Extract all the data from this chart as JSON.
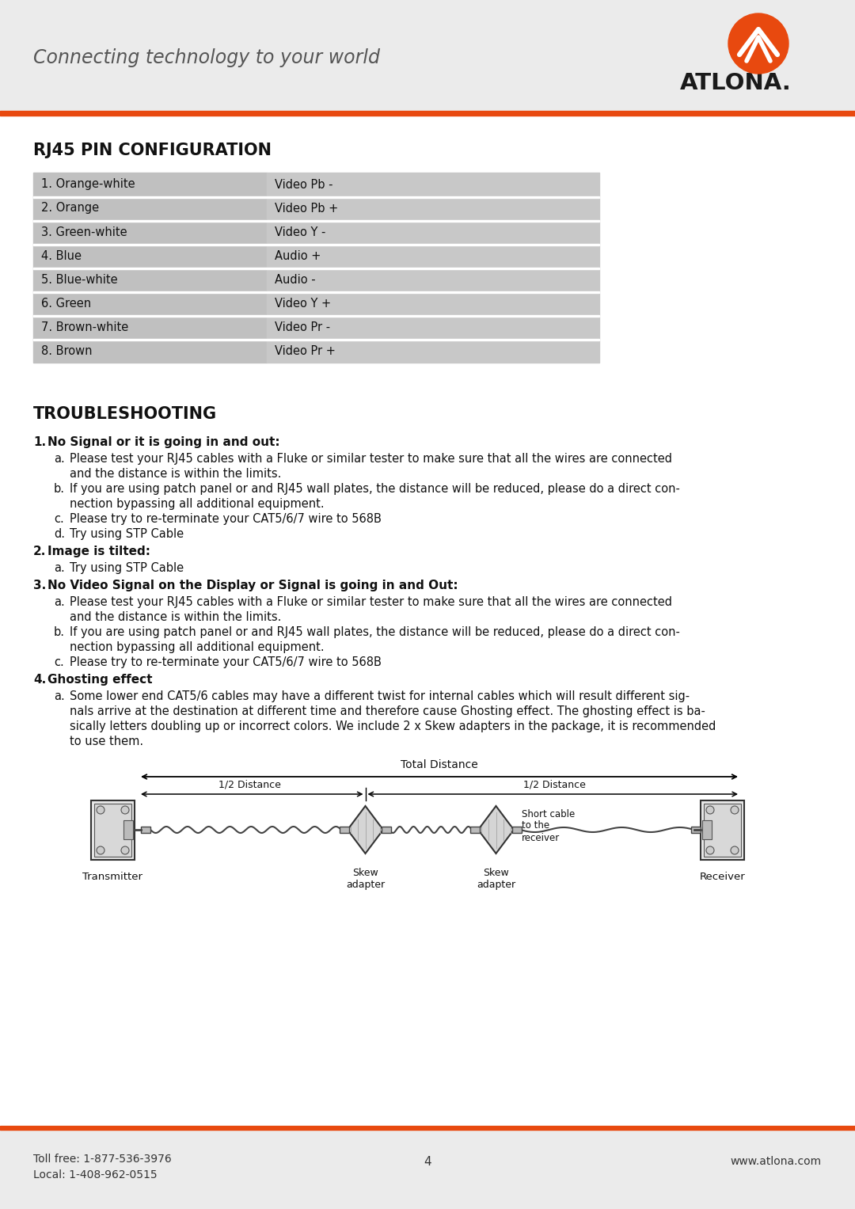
{
  "header_bg": "#ebebeb",
  "header_text": "Connecting technology to your world",
  "header_text_color": "#555555",
  "brand_name": "ATLONA.",
  "orange_color": "#e8490f",
  "section1_title": "RJ45 PIN CONFIGURATION",
  "table_rows": [
    [
      "1. Orange-white",
      "Video Pb -"
    ],
    [
      "2. Orange",
      "Video Pb +"
    ],
    [
      "3. Green-white",
      "Video Y -"
    ],
    [
      "4. Blue",
      "Audio +"
    ],
    [
      "5. Blue-white",
      "Audio -"
    ],
    [
      "6. Green",
      "Video Y +"
    ],
    [
      "7. Brown-white",
      "Video Pr -"
    ],
    [
      "8. Brown",
      "Video Pr +"
    ]
  ],
  "table_col1_bg": "#c0c0c0",
  "table_col2_bg": "#c8c8c8",
  "section2_title": "TROUBLESHOOTING",
  "troubleshooting_items": [
    {
      "num": "1.",
      "title": "No Signal or it is going in and out:",
      "sub_items": [
        {
          "letter": "a.",
          "text": "Please test your RJ45 cables with a Fluke or similar tester to make sure that all the wires are connected\n      and the distance is within the limits."
        },
        {
          "letter": "b.",
          "text": "If you are using patch panel or and RJ45 wall plates, the distance will be reduced, please do a direct con-\n      nection bypassing all additional equipment."
        },
        {
          "letter": "c.",
          "text": "Please try to re-terminate your CAT5/6/7 wire to 568B"
        },
        {
          "letter": "d.",
          "text": "Try using STP Cable"
        }
      ]
    },
    {
      "num": "2.",
      "title": "Image is tilted:",
      "sub_items": [
        {
          "letter": "a.",
          "text": "Try using STP Cable"
        }
      ]
    },
    {
      "num": "3.",
      "title": "No Video Signal on the Display or Signal is going in and Out:",
      "sub_items": [
        {
          "letter": "a.",
          "text": "Please test your RJ45 cables with a Fluke or similar tester to make sure that all the wires are connected\n      and the distance is within the limits."
        },
        {
          "letter": "b.",
          "text": "If you are using patch panel or and RJ45 wall plates, the distance will be reduced, please do a direct con-\n      nection bypassing all additional equipment."
        },
        {
          "letter": "c.",
          "text": "Please try to re-terminate your CAT5/6/7 wire to 568B"
        }
      ]
    },
    {
      "num": "4.",
      "title": "Ghosting effect",
      "sub_items": [
        {
          "letter": "a.",
          "text": "Some lower end CAT5/6 cables may have a different twist for internal cables which will result different sig-\n      nals arrive at the destination at different time and therefore cause Ghosting effect. The ghosting effect is ba-\n      sically letters doubling up or incorrect colors. We include 2 x Skew adapters in the package, it is recommended\n      to use them."
        }
      ]
    }
  ],
  "footer_toll_free": "Toll free: 1-877-536-3976",
  "footer_local": "Local: 1-408-962-0515",
  "footer_page": "4",
  "footer_website": "www.atlona.com",
  "page_bg": "#ffffff",
  "footer_bg": "#ebebeb"
}
